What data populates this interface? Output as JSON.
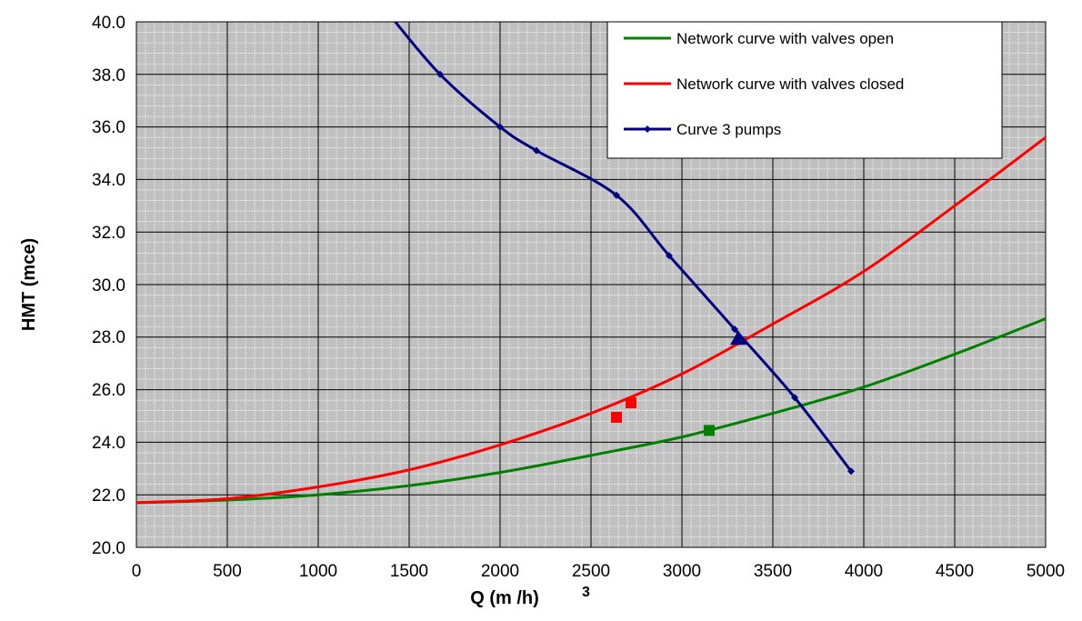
{
  "chart_data": {
    "type": "line",
    "xlabel": "Q (m /h)",
    "xlabel_sup": "3",
    "ylabel": "HMT (mce)",
    "xlim": [
      0,
      5000
    ],
    "ylim": [
      20,
      40
    ],
    "x_ticks": [
      0,
      500,
      1000,
      1500,
      2000,
      2500,
      3000,
      3500,
      4000,
      4500,
      5000
    ],
    "y_ticks": [
      20,
      22,
      24,
      26,
      28,
      30,
      32,
      34,
      36,
      38,
      40
    ],
    "x_tick_labels": [
      "0",
      "500",
      "1000",
      "1500",
      "2000",
      "2500",
      "3000",
      "3500",
      "4000",
      "4500",
      "5000"
    ],
    "y_tick_labels": [
      "20.0",
      "22.0",
      "24.0",
      "26.0",
      "28.0",
      "30.0",
      "32.0",
      "34.0",
      "36.0",
      "38.0",
      "40.0"
    ],
    "grid": true,
    "minor_grid": true,
    "plot_background": "#c0c0c0",
    "legend_position": "top-right",
    "series": [
      {
        "name": "Network curve with valves open",
        "color": "#008000",
        "marker": "none",
        "x": [
          0,
          500,
          1000,
          1500,
          2000,
          2500,
          3000,
          3500,
          4000,
          4500,
          5000
        ],
        "y": [
          21.7,
          21.8,
          22.0,
          22.35,
          22.85,
          23.5,
          24.2,
          25.1,
          26.1,
          27.35,
          28.7
        ]
      },
      {
        "name": "Network curve with valves closed",
        "color": "#ff0000",
        "marker": "none",
        "x": [
          0,
          500,
          1000,
          1500,
          2000,
          2500,
          3000,
          3500,
          4000,
          4500,
          5000
        ],
        "y": [
          21.7,
          21.85,
          22.3,
          22.95,
          23.9,
          25.1,
          26.6,
          28.5,
          30.5,
          33.0,
          35.6
        ]
      },
      {
        "name": "Curve 3 pumps",
        "color": "#000080",
        "marker": "diamond",
        "x": [
          1400,
          1670,
          2000,
          2200,
          2640,
          2930,
          3290,
          3620,
          3930
        ],
        "y": [
          40.2,
          38.0,
          36.0,
          35.1,
          33.4,
          31.1,
          28.3,
          25.7,
          22.9
        ]
      }
    ],
    "points": [
      {
        "x": 2640,
        "y": 24.95,
        "shape": "square",
        "color": "#ff0000"
      },
      {
        "x": 2720,
        "y": 25.5,
        "shape": "square",
        "color": "#ff0000"
      },
      {
        "x": 3150,
        "y": 24.45,
        "shape": "square",
        "color": "#008000"
      },
      {
        "x": 3310,
        "y": 27.95,
        "shape": "triangle",
        "color": "#000080"
      }
    ]
  }
}
